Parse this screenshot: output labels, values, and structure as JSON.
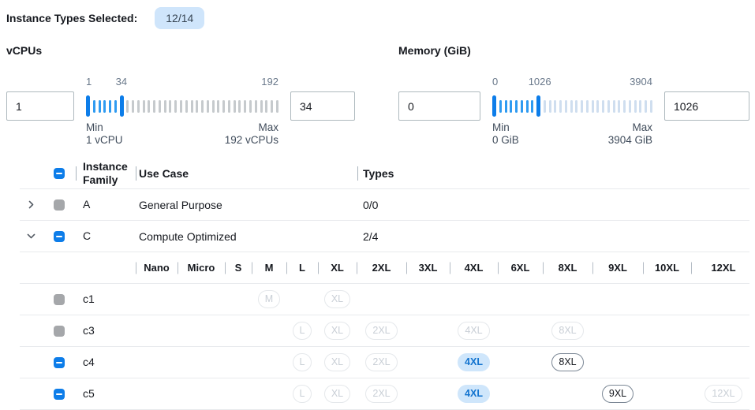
{
  "colors": {
    "accent_blue": "#0d7de9",
    "tick_blue": "#2f9bf1",
    "tick_gray": "#c6cacd",
    "tick_light": "#cfdeef",
    "badge_bg": "#cfe5fb",
    "badge_text": "#374553",
    "pill_selected_bg": "#cfe6fb",
    "pill_selected_text": "#1273cf",
    "pill_active_border": "#7b8795",
    "pill_disabled_border": "#e5e8eb",
    "pill_disabled_text": "#c9cfd6",
    "checkbox_gray": "#a5a7aa",
    "row_border": "#e8eaed",
    "divider": "#a9b3bd",
    "text_dark": "#16191f",
    "text_secondary": "#414d5c",
    "scale_label": "#69788a",
    "input_border": "#aeb9be"
  },
  "header": {
    "label": "Instance Types Selected:",
    "badge": "12/14"
  },
  "filters": {
    "vcpus": {
      "title": "vCPUs",
      "from_value": "1",
      "to_value": "34",
      "scale": {
        "start": "1",
        "current": "34",
        "end": "192"
      },
      "current_pct": 17.5,
      "min": {
        "label": "Min",
        "sub": "1 vCPU"
      },
      "max": {
        "label": "Max",
        "sub": "192 vCPUs"
      },
      "ticks": {
        "between": 5,
        "after": 29,
        "after_style": "gray"
      }
    },
    "memory": {
      "title": "Memory (GiB)",
      "from_value": "0",
      "to_value": "1026",
      "scale": {
        "start": "0",
        "current": "1026",
        "end": "3904"
      },
      "current_pct": 27.5,
      "min": {
        "label": "Min",
        "sub": "0 GiB"
      },
      "max": {
        "label": "Max",
        "sub": "3904 GiB"
      },
      "ticks": {
        "between": 7,
        "after": 21,
        "after_style": "light"
      }
    }
  },
  "table": {
    "header": {
      "family": "Instance Family",
      "use_case": "Use Case",
      "types": "Types",
      "checkbox": "indeterminate"
    },
    "size_columns": [
      "Nano",
      "Micro",
      "S",
      "M",
      "L",
      "XL",
      "2XL",
      "3XL",
      "4XL",
      "6XL",
      "8XL",
      "9XL",
      "10XL",
      "12XL"
    ],
    "families": [
      {
        "name": "A",
        "use_case": "General Purpose",
        "types": "0/0",
        "checkbox": "gray",
        "chevron": "collapsed"
      },
      {
        "name": "C",
        "use_case": "Compute Optimized",
        "types": "2/4",
        "checkbox": "indeterminate",
        "chevron": "expanded"
      }
    ],
    "instances": [
      {
        "name": "c1",
        "checkbox": "gray",
        "pills": [
          {
            "size": "M",
            "state": "disabled"
          },
          {
            "size": "XL",
            "state": "disabled"
          }
        ]
      },
      {
        "name": "c3",
        "checkbox": "gray",
        "pills": [
          {
            "size": "L",
            "state": "disabled"
          },
          {
            "size": "XL",
            "state": "disabled"
          },
          {
            "size": "2XL",
            "state": "disabled"
          },
          {
            "size": "4XL",
            "state": "disabled"
          },
          {
            "size": "8XL",
            "state": "disabled"
          }
        ]
      },
      {
        "name": "c4",
        "checkbox": "indeterminate",
        "pills": [
          {
            "size": "L",
            "state": "disabled"
          },
          {
            "size": "XL",
            "state": "disabled"
          },
          {
            "size": "2XL",
            "state": "disabled"
          },
          {
            "size": "4XL",
            "state": "selected"
          },
          {
            "size": "8XL",
            "state": "active"
          }
        ]
      },
      {
        "name": "c5",
        "checkbox": "indeterminate",
        "pills": [
          {
            "size": "L",
            "state": "disabled"
          },
          {
            "size": "XL",
            "state": "disabled"
          },
          {
            "size": "2XL",
            "state": "disabled"
          },
          {
            "size": "4XL",
            "state": "selected"
          },
          {
            "size": "9XL",
            "state": "active"
          },
          {
            "size": "12XL",
            "state": "disabled"
          }
        ]
      }
    ]
  }
}
